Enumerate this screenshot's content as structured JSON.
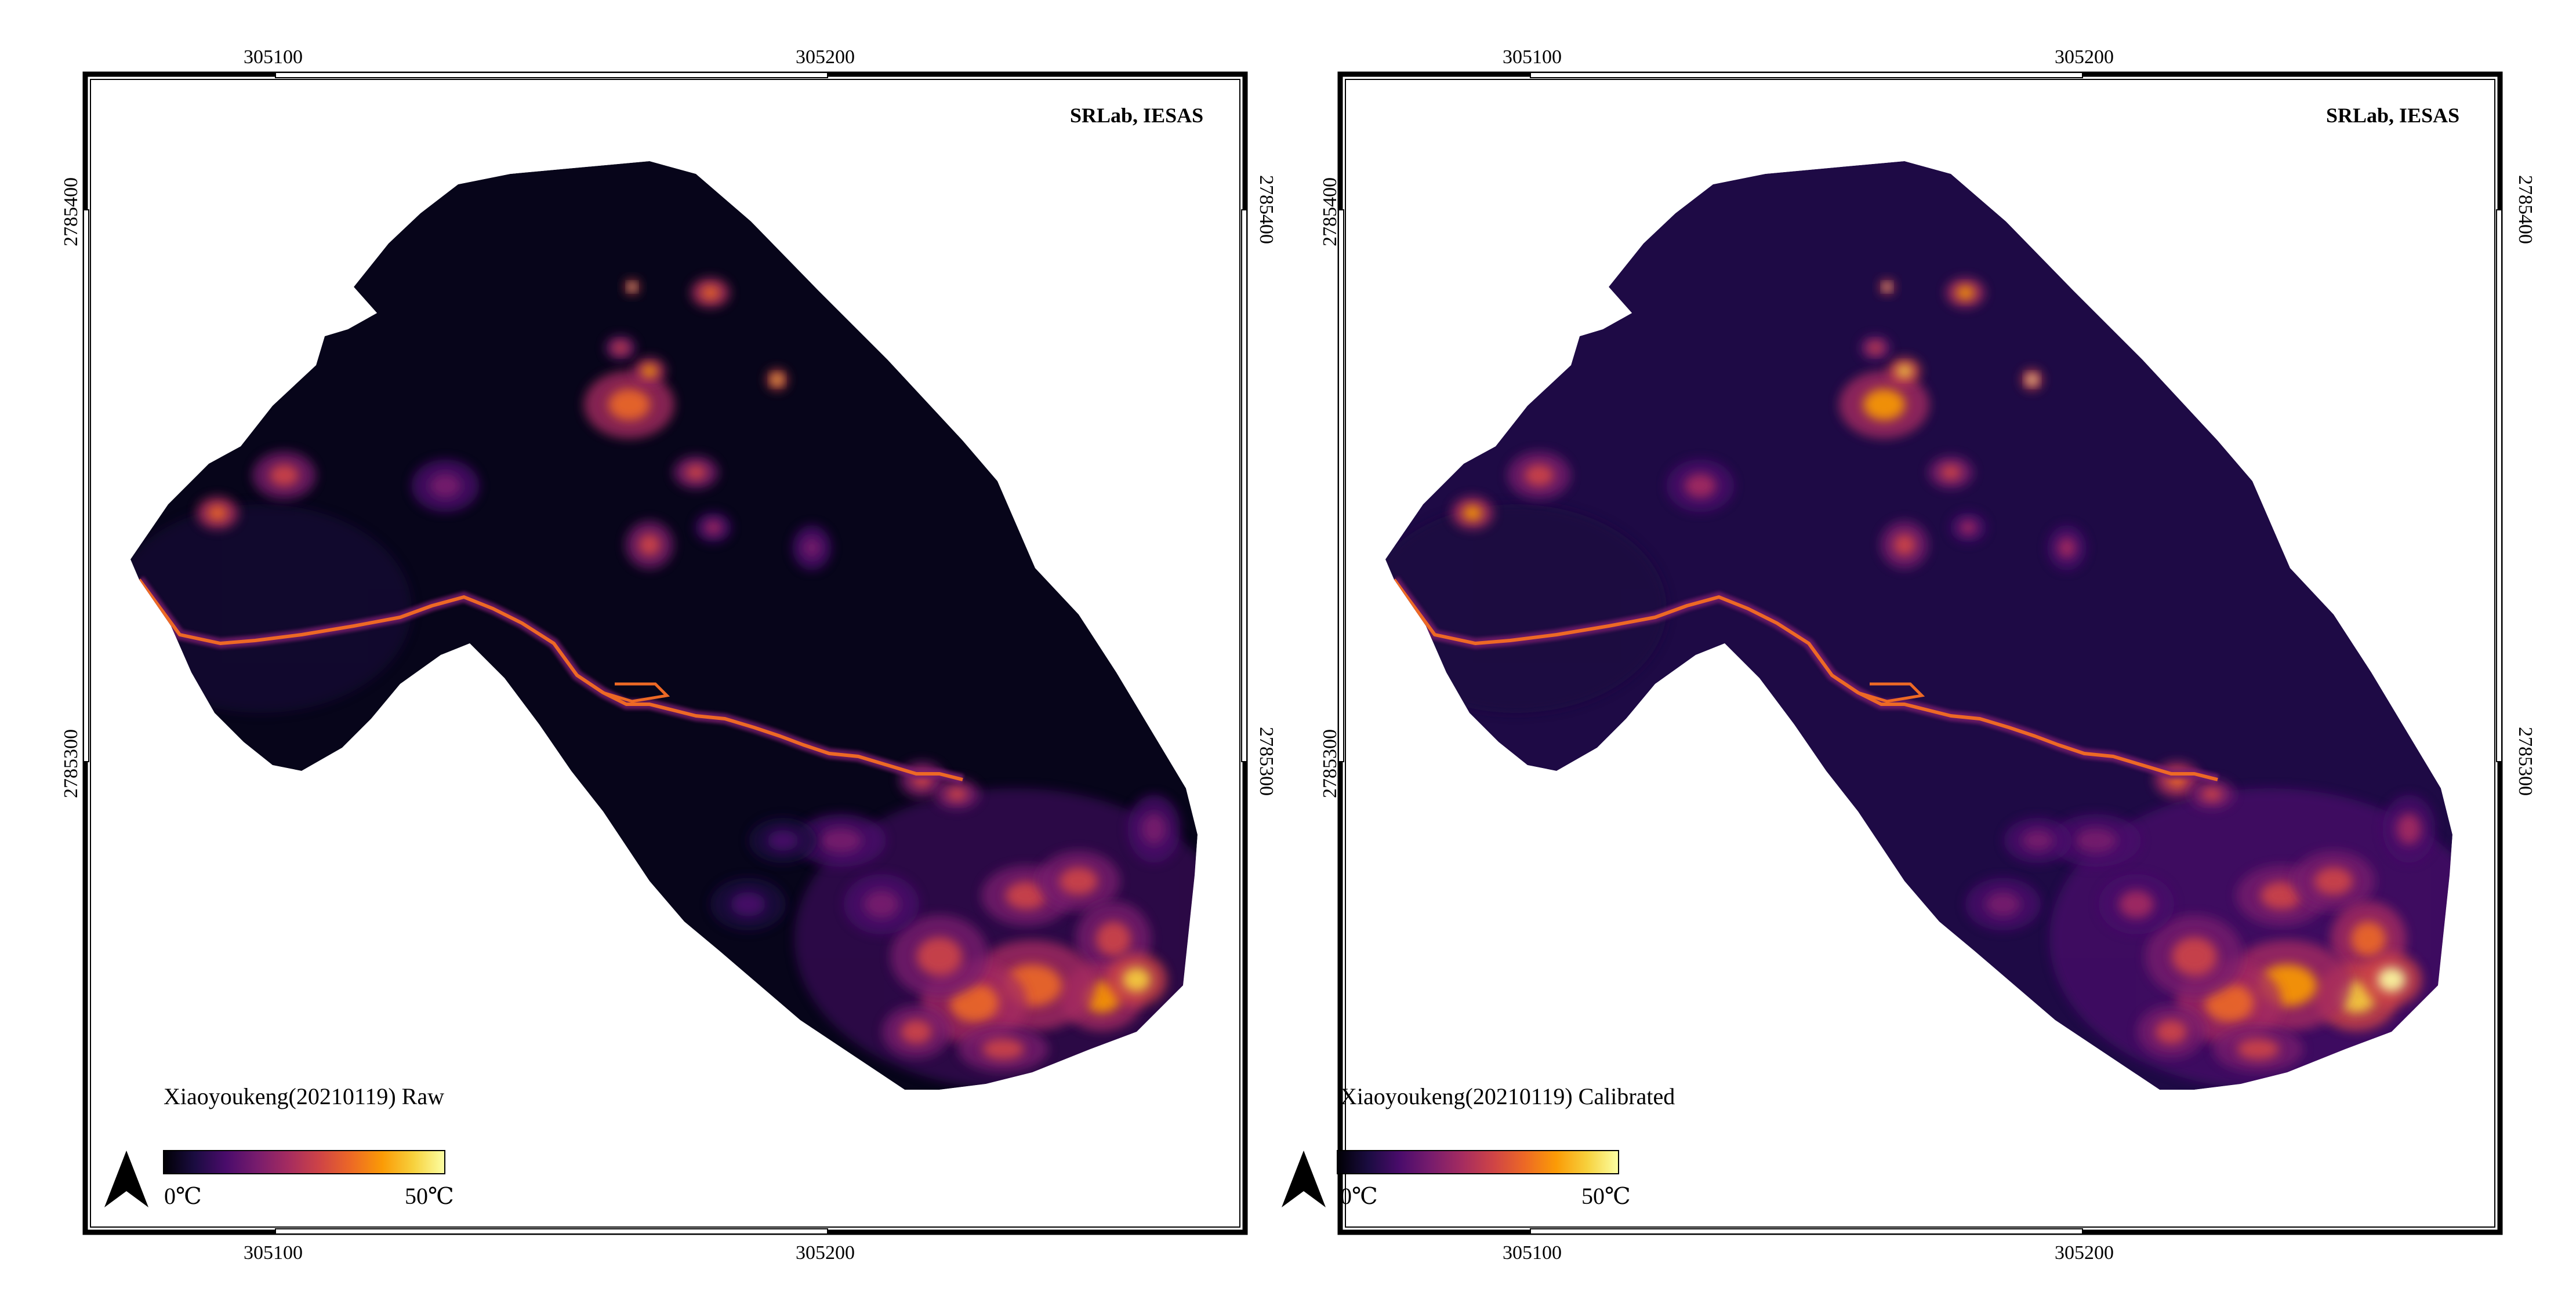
{
  "colormap": {
    "name": "inferno",
    "stops": [
      "#000004",
      "#1b0c41",
      "#4a0c6b",
      "#781c6d",
      "#a52c60",
      "#cf4446",
      "#ed6925",
      "#fb9b06",
      "#f7d13d",
      "#fcffa4"
    ]
  },
  "panels": [
    {
      "id": "raw",
      "title": "Xiaoyoukeng(20210119) Raw",
      "credit": "SRLab, IESAS",
      "easting_labels": [
        "305100",
        "305200"
      ],
      "northing_labels": [
        "2785400",
        "2785300"
      ],
      "legend": {
        "min_label": "0℃",
        "max_label": "50℃",
        "min_value": 0,
        "max_value": 50,
        "unit": "℃"
      },
      "base_color": "#07051a"
    },
    {
      "id": "calibrated",
      "title": "Xiaoyoukeng(20210119) Calibrated",
      "credit": "SRLab, IESAS",
      "easting_labels": [
        "305100",
        "305200"
      ],
      "northing_labels": [
        "2785400",
        "2785300"
      ],
      "legend": {
        "min_label": "0℃",
        "max_label": "50℃",
        "min_value": 0,
        "max_value": 50,
        "unit": "℃"
      },
      "base_color": "#1e0a45"
    }
  ]
}
